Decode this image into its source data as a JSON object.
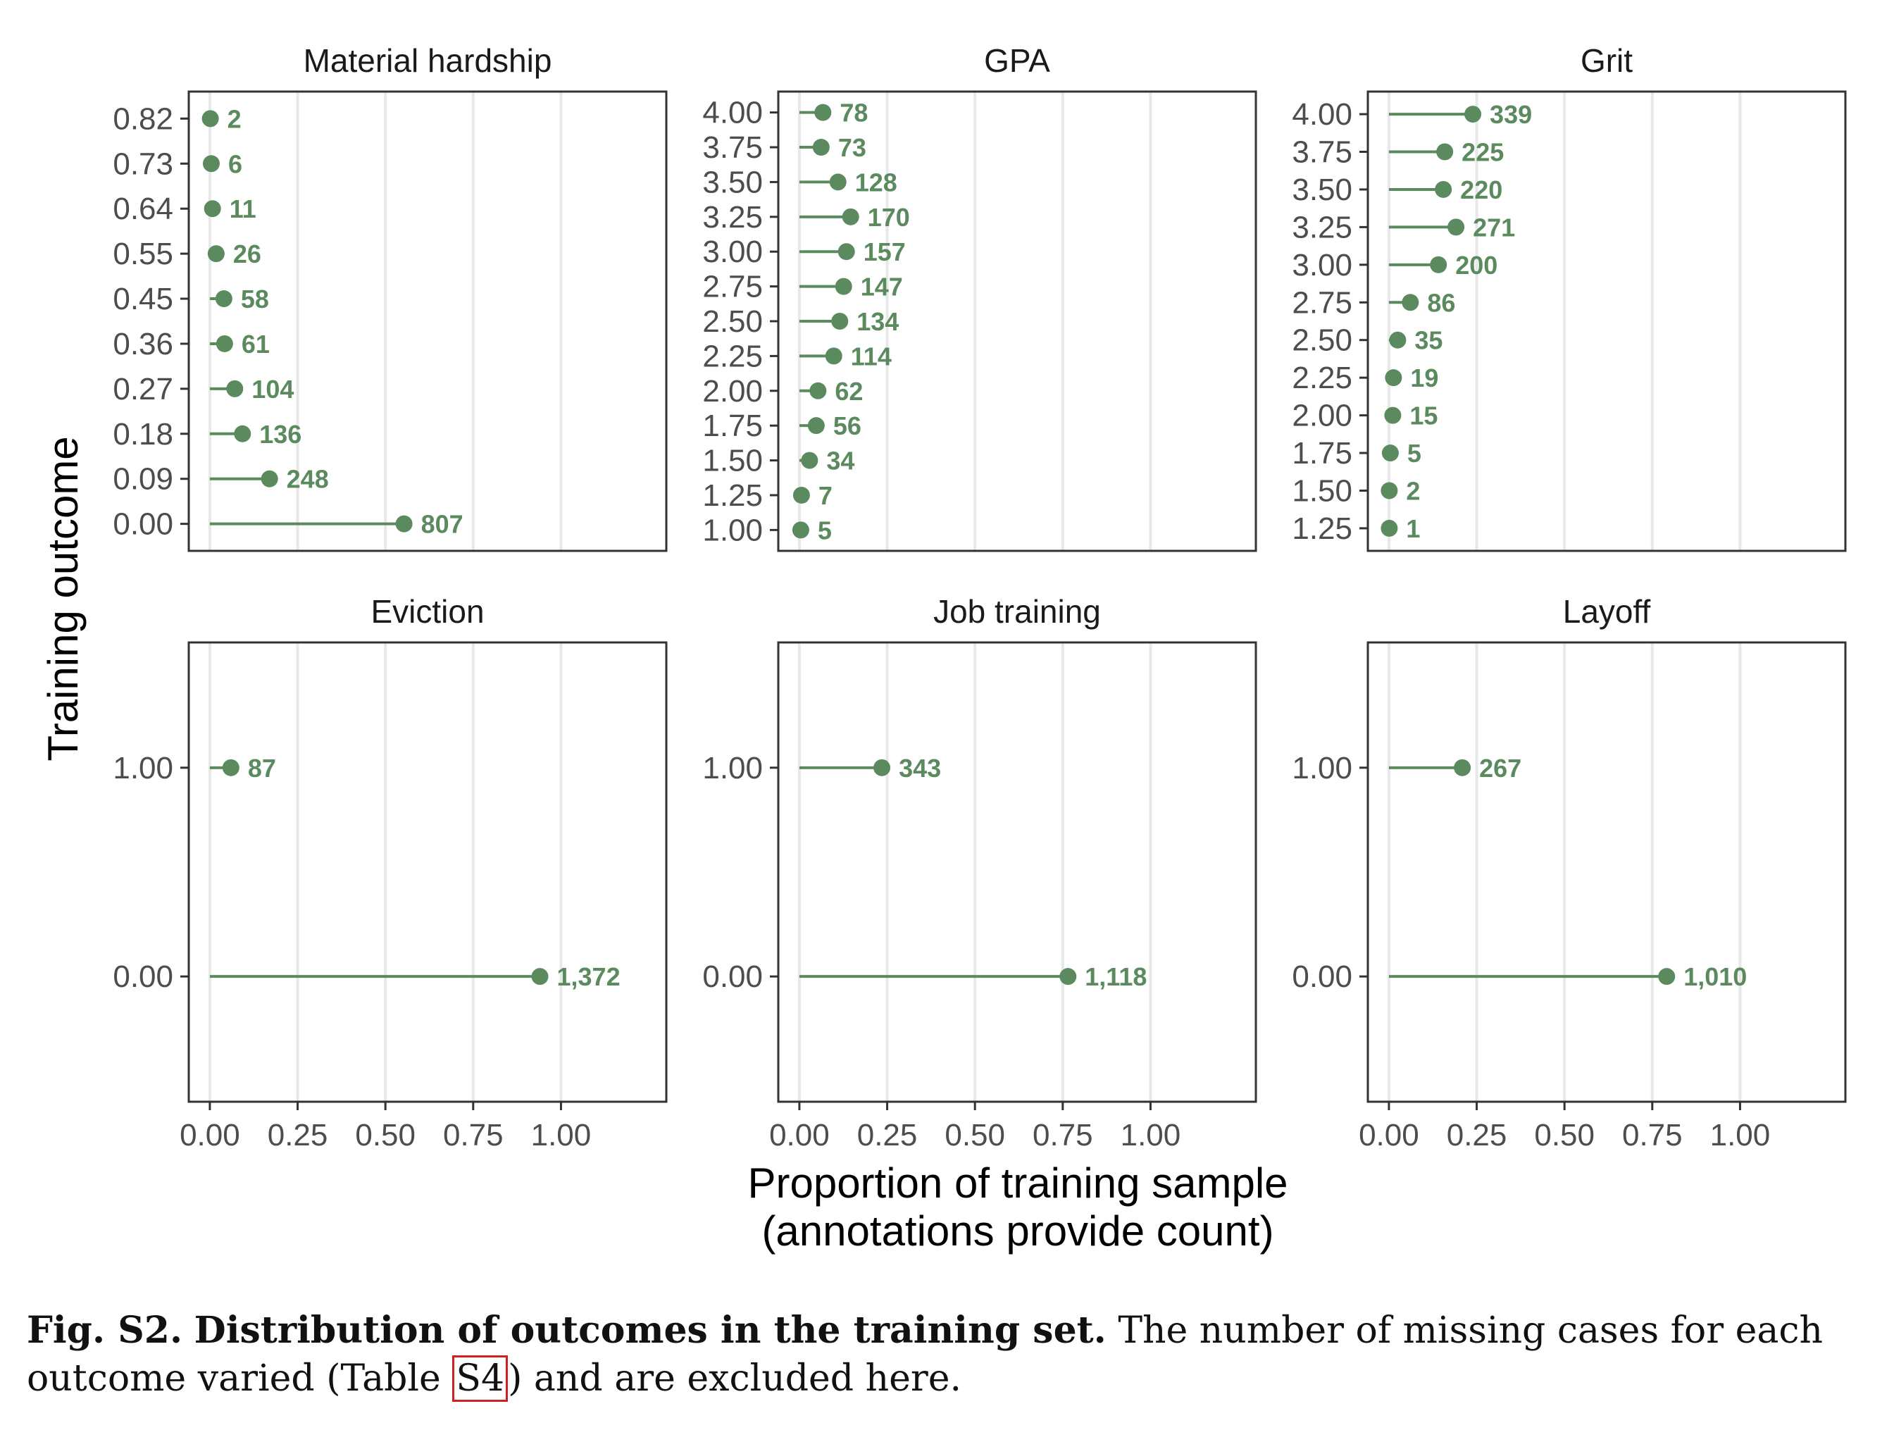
{
  "chart_data": {
    "type": "lollipop",
    "ylabel": "Training outcome",
    "xlabel_line1": "Proportion of training sample",
    "xlabel_line2": "(annotations provide count)",
    "xlim": [
      -0.06,
      1.3
    ],
    "x_ticks": [
      0,
      0.25,
      0.5,
      0.75,
      1.0
    ],
    "x_tick_labels": [
      "0.00",
      "0.25",
      "0.50",
      "0.75",
      "1.00"
    ],
    "point_color": "#5b8a5f",
    "grid": true,
    "panels": [
      {
        "title": "Material hardship",
        "y_tick_labels": [
          "0.82",
          "0.73",
          "0.64",
          "0.55",
          "0.45",
          "0.36",
          "0.27",
          "0.18",
          "0.09",
          "0.00"
        ],
        "counts": [
          "2",
          "6",
          "11",
          "26",
          "58",
          "61",
          "104",
          "136",
          "248",
          "807"
        ],
        "proportions": [
          0.0014,
          0.0041,
          0.0076,
          0.018,
          0.04,
          0.042,
          0.071,
          0.093,
          0.17,
          0.553
        ]
      },
      {
        "title": "GPA",
        "y_tick_labels": [
          "4.00",
          "3.75",
          "3.50",
          "3.25",
          "3.00",
          "2.75",
          "2.50",
          "2.25",
          "2.00",
          "1.75",
          "1.50",
          "1.25",
          "1.00"
        ],
        "counts": [
          "78",
          "73",
          "128",
          "170",
          "157",
          "147",
          "134",
          "114",
          "62",
          "56",
          "34",
          "7",
          "5"
        ],
        "proportions": [
          0.067,
          0.062,
          0.11,
          0.146,
          0.134,
          0.126,
          0.115,
          0.098,
          0.053,
          0.048,
          0.029,
          0.006,
          0.004
        ]
      },
      {
        "title": "Grit",
        "y_tick_labels": [
          "4.00",
          "3.75",
          "3.50",
          "3.25",
          "3.00",
          "2.75",
          "2.50",
          "2.25",
          "2.00",
          "1.75",
          "1.50",
          "1.25"
        ],
        "counts": [
          "339",
          "225",
          "220",
          "271",
          "200",
          "86",
          "35",
          "19",
          "15",
          "5",
          "2",
          "1"
        ],
        "proportions": [
          0.239,
          0.159,
          0.155,
          0.191,
          0.141,
          0.061,
          0.025,
          0.013,
          0.011,
          0.004,
          0.001,
          0.001
        ]
      },
      {
        "title": "Eviction",
        "y_tick_labels": [
          "1.00",
          "0.00"
        ],
        "counts": [
          "87",
          "1,372"
        ],
        "proportions": [
          0.06,
          0.94
        ],
        "y_positions": [
          1,
          0
        ],
        "y_range": [
          -0.6,
          1.6
        ]
      },
      {
        "title": "Job training",
        "y_tick_labels": [
          "1.00",
          "0.00"
        ],
        "counts": [
          "343",
          "1,118"
        ],
        "proportions": [
          0.235,
          0.765
        ],
        "y_positions": [
          1,
          0
        ],
        "y_range": [
          -0.6,
          1.6
        ]
      },
      {
        "title": "Layoff",
        "y_tick_labels": [
          "1.00",
          "0.00"
        ],
        "counts": [
          "267",
          "1,010"
        ],
        "proportions": [
          0.209,
          0.791
        ],
        "y_positions": [
          1,
          0
        ],
        "y_range": [
          -0.6,
          1.6
        ]
      }
    ]
  },
  "caption": {
    "label": "Fig. S2.",
    "title": "Distribution of outcomes in the training set.",
    "text_before": "The number of missing cases for each outcome varied (Table ",
    "ref": "S4",
    "text_after": ") and are excluded here."
  }
}
